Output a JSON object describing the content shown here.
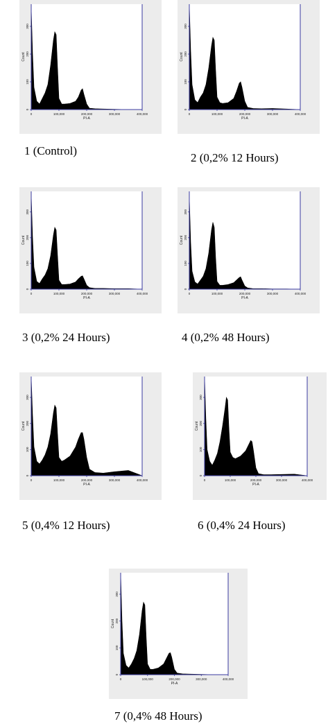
{
  "chart_data": [
    {
      "type": "area",
      "caption": "1 (Control)",
      "xlabel": "PI-A",
      "ylabel": "Count",
      "xticks": [
        "0",
        "100,000",
        "200,000",
        "300,000",
        "400,000"
      ],
      "yticks": [
        "0",
        "100",
        "200",
        "300"
      ],
      "xlim": [
        0,
        400000
      ],
      "ylim": [
        0,
        380
      ],
      "x": [
        0,
        5000,
        10000,
        20000,
        30000,
        40000,
        50000,
        60000,
        70000,
        80000,
        85000,
        90000,
        95000,
        100000,
        110000,
        120000,
        140000,
        160000,
        170000,
        180000,
        185000,
        190000,
        200000,
        210000,
        230000,
        260000,
        300000,
        350000,
        400000
      ],
      "series": [
        {
          "values": [
            370,
            200,
            80,
            30,
            20,
            40,
            60,
            90,
            160,
            250,
            280,
            270,
            150,
            40,
            20,
            20,
            22,
            30,
            45,
            70,
            75,
            55,
            20,
            5,
            3,
            2,
            1,
            0,
            0
          ]
        }
      ],
      "color": "#000000"
    },
    {
      "type": "area",
      "caption": "2 (0,2% 12 Hours)",
      "xlabel": "PI-A",
      "ylabel": "Count",
      "xticks": [
        "0",
        "100,000",
        "200,000",
        "300,000",
        "400,000"
      ],
      "yticks": [
        "0",
        "100",
        "200",
        "300"
      ],
      "xlim": [
        0,
        400000
      ],
      "ylim": [
        0,
        380
      ],
      "x": [
        0,
        5000,
        10000,
        20000,
        30000,
        40000,
        50000,
        60000,
        70000,
        80000,
        85000,
        90000,
        95000,
        100000,
        110000,
        120000,
        140000,
        160000,
        170000,
        180000,
        185000,
        190000,
        200000,
        210000,
        230000,
        260000,
        300000,
        350000,
        400000
      ],
      "series": [
        {
          "values": [
            380,
            210,
            90,
            35,
            25,
            45,
            60,
            90,
            150,
            230,
            260,
            250,
            140,
            45,
            25,
            22,
            25,
            40,
            65,
            95,
            100,
            80,
            30,
            8,
            4,
            3,
            4,
            2,
            0
          ]
        }
      ],
      "color": "#000000"
    },
    {
      "type": "area",
      "caption": "3 (0,2% 24 Hours)",
      "xlabel": "PI-A",
      "ylabel": "Count",
      "xticks": [
        "0",
        "100,000",
        "200,000",
        "300,000",
        "400,000"
      ],
      "yticks": [
        "0",
        "100",
        "200",
        "300"
      ],
      "xlim": [
        0,
        400000
      ],
      "ylim": [
        0,
        380
      ],
      "x": [
        0,
        5000,
        10000,
        20000,
        30000,
        40000,
        50000,
        60000,
        70000,
        80000,
        85000,
        90000,
        95000,
        100000,
        110000,
        120000,
        140000,
        160000,
        170000,
        180000,
        185000,
        190000,
        200000,
        210000,
        230000,
        260000,
        300000,
        350000,
        400000
      ],
      "series": [
        {
          "values": [
            370,
            200,
            85,
            30,
            22,
            40,
            55,
            80,
            130,
            210,
            240,
            230,
            130,
            35,
            18,
            18,
            20,
            28,
            40,
            50,
            52,
            40,
            15,
            6,
            3,
            3,
            2,
            2,
            0
          ]
        }
      ],
      "color": "#000000"
    },
    {
      "type": "area",
      "caption": "4 (0,2% 48 Hours)",
      "xlabel": "PI-A",
      "ylabel": "Count",
      "xticks": [
        "0",
        "100,000",
        "200,000",
        "300,000",
        "400,000"
      ],
      "yticks": [
        "0",
        "100",
        "200",
        "300"
      ],
      "xlim": [
        0,
        400000
      ],
      "ylim": [
        0,
        380
      ],
      "x": [
        0,
        5000,
        10000,
        20000,
        30000,
        40000,
        50000,
        60000,
        70000,
        80000,
        85000,
        90000,
        95000,
        100000,
        110000,
        120000,
        140000,
        160000,
        170000,
        180000,
        185000,
        190000,
        200000,
        210000,
        230000,
        260000,
        300000,
        350000,
        400000
      ],
      "series": [
        {
          "values": [
            360,
            180,
            70,
            28,
            20,
            35,
            50,
            80,
            140,
            230,
            260,
            240,
            120,
            30,
            15,
            15,
            18,
            25,
            35,
            45,
            48,
            35,
            12,
            5,
            2,
            2,
            1,
            1,
            0
          ]
        }
      ],
      "color": "#000000"
    },
    {
      "type": "area",
      "caption": "5 (0,4% 12 Hours)",
      "xlabel": "PI-A",
      "ylabel": "Count",
      "xticks": [
        "0",
        "100,000",
        "200,000",
        "300,000",
        "400,000"
      ],
      "yticks": [
        "0",
        "100",
        "200",
        "300"
      ],
      "xlim": [
        0,
        400000
      ],
      "ylim": [
        0,
        380
      ],
      "x": [
        0,
        5000,
        10000,
        20000,
        30000,
        40000,
        50000,
        60000,
        70000,
        80000,
        85000,
        90000,
        95000,
        100000,
        110000,
        120000,
        140000,
        160000,
        170000,
        180000,
        185000,
        190000,
        200000,
        210000,
        230000,
        260000,
        300000,
        350000,
        400000
      ],
      "series": [
        {
          "values": [
            380,
            230,
            110,
            55,
            45,
            60,
            80,
            110,
            160,
            240,
            270,
            260,
            160,
            70,
            55,
            60,
            75,
            110,
            140,
            165,
            165,
            140,
            70,
            25,
            12,
            10,
            15,
            20,
            0
          ]
        }
      ],
      "color": "#000000"
    },
    {
      "type": "area",
      "caption": "6 (0,4% 24 Hours)",
      "xlabel": "PI-A",
      "ylabel": "Count",
      "xticks": [
        "0",
        "100,000",
        "200,000",
        "300,000",
        "400,000"
      ],
      "yticks": [
        "0",
        "100",
        "200",
        "300"
      ],
      "xlim": [
        0,
        400000
      ],
      "ylim": [
        0,
        380
      ],
      "x": [
        0,
        5000,
        10000,
        20000,
        30000,
        40000,
        50000,
        60000,
        70000,
        80000,
        85000,
        90000,
        95000,
        100000,
        110000,
        120000,
        140000,
        160000,
        170000,
        180000,
        185000,
        190000,
        200000,
        210000,
        230000,
        260000,
        300000,
        350000,
        400000
      ],
      "series": [
        {
          "values": [
            380,
            220,
            100,
            55,
            40,
            60,
            85,
            130,
            190,
            260,
            300,
            290,
            180,
            90,
            70,
            65,
            75,
            95,
            115,
            135,
            130,
            100,
            30,
            8,
            4,
            4,
            5,
            6,
            0
          ]
        }
      ],
      "color": "#000000"
    },
    {
      "type": "area",
      "caption": "7 (0,4% 48 Hours)",
      "xlabel": "PI-A",
      "ylabel": "Count",
      "xticks": [
        "0",
        "100,000",
        "200,000",
        "300,000",
        "400,000"
      ],
      "yticks": [
        "0",
        "100",
        "200",
        "300"
      ],
      "xlim": [
        0,
        400000
      ],
      "ylim": [
        0,
        380
      ],
      "x": [
        0,
        5000,
        10000,
        20000,
        30000,
        40000,
        50000,
        60000,
        70000,
        80000,
        85000,
        90000,
        95000,
        100000,
        110000,
        120000,
        140000,
        160000,
        170000,
        180000,
        185000,
        190000,
        200000,
        210000,
        230000,
        260000,
        300000,
        350000,
        400000
      ],
      "series": [
        {
          "values": [
            380,
            200,
            80,
            35,
            25,
            40,
            60,
            90,
            150,
            240,
            270,
            260,
            140,
            40,
            20,
            20,
            25,
            40,
            60,
            80,
            82,
            65,
            20,
            6,
            3,
            2,
            1,
            0,
            0
          ]
        }
      ],
      "color": "#000000"
    }
  ],
  "colors": {
    "axis": "#3a3aa0",
    "panel_bg": "#ececec",
    "plot_bg": "#ffffff",
    "fill": "#000000"
  }
}
